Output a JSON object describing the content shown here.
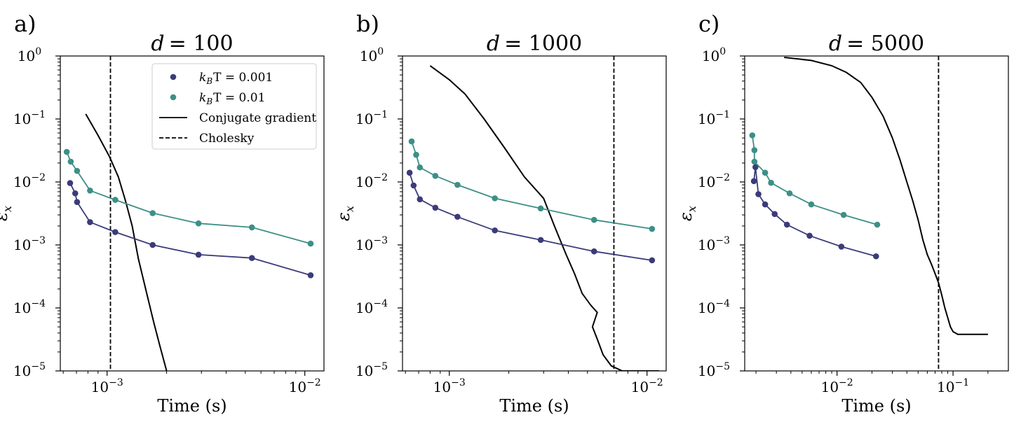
{
  "figure": {
    "colors": {
      "kT_0001": "#3b3b7a",
      "kT_001": "#3d8f87",
      "reference": "#000000"
    }
  },
  "chart_data": [
    {
      "type": "line",
      "panel_label": "a)",
      "title_var": "d",
      "title_value": "= 100",
      "xlabel": "Time (s)",
      "ylabel": "ε",
      "ylabel_sub": "x",
      "xscale": "log",
      "yscale": "log",
      "xlim": [
        0.00058,
        0.0125
      ],
      "ylim": [
        1e-05,
        1
      ],
      "x_ticks": [
        {
          "value": 0.001,
          "base": "10",
          "exp": "−3"
        },
        {
          "value": 0.01,
          "base": "10",
          "exp": "−2"
        }
      ],
      "y_ticks": [
        {
          "value": 1,
          "base": "10",
          "exp": "0"
        },
        {
          "value": 0.1,
          "base": "10",
          "exp": "−1"
        },
        {
          "value": 0.01,
          "base": "10",
          "exp": "−2"
        },
        {
          "value": 0.001,
          "base": "10",
          "exp": "−3"
        },
        {
          "value": 0.0001,
          "base": "10",
          "exp": "−4"
        },
        {
          "value": 1e-05,
          "base": "10",
          "exp": "−5"
        }
      ],
      "legend": {
        "position": "top-right",
        "entries": [
          {
            "key": "kT_0001",
            "style": "marker",
            "label_sym": "k",
            "label_sub": "B",
            "label_rest": "T = 0.001"
          },
          {
            "key": "kT_001",
            "style": "marker",
            "label_sym": "k",
            "label_sub": "B",
            "label_rest": "T = 0.01"
          },
          {
            "key": "cg",
            "style": "solid",
            "label": "Conjugate gradient"
          },
          {
            "key": "chol",
            "style": "dashed",
            "label": "Cholesky"
          }
        ]
      },
      "series": [
        {
          "key": "kT_0001",
          "name": "kBT = 0.001",
          "color": "#3b3b7a",
          "x": [
            0.00065,
            0.00069,
            0.000705,
            0.00082,
            0.0011,
            0.0017,
            0.0029,
            0.0054,
            0.0107
          ],
          "y": [
            0.0096,
            0.0066,
            0.0048,
            0.0023,
            0.0016,
            0.001,
            0.0007,
            0.00062,
            0.00033
          ]
        },
        {
          "key": "kT_001",
          "name": "kBT = 0.01",
          "color": "#3d8f87",
          "x": [
            0.000625,
            0.000655,
            0.000705,
            0.00082,
            0.0011,
            0.0017,
            0.0029,
            0.0054,
            0.0107
          ],
          "y": [
            0.03,
            0.021,
            0.015,
            0.0073,
            0.0052,
            0.0032,
            0.0022,
            0.0019,
            0.00105
          ]
        }
      ],
      "conjugate_gradient": {
        "x": [
          0.00078,
          0.0009,
          0.00103,
          0.00114,
          0.00124,
          0.00134,
          0.00144,
          0.00158,
          0.00172,
          0.00185,
          0.002
        ],
        "y": [
          0.12,
          0.055,
          0.025,
          0.012,
          0.005,
          0.002,
          0.0006,
          0.00018,
          6e-05,
          2.5e-05,
          1e-05
        ]
      },
      "cholesky_time": 0.00104
    },
    {
      "type": "line",
      "panel_label": "b)",
      "title_var": "d",
      "title_value": "= 1000",
      "xlabel": "Time (s)",
      "ylabel": "ε",
      "ylabel_sub": "x",
      "xscale": "log",
      "yscale": "log",
      "xlim": [
        0.00058,
        0.0125
      ],
      "ylim": [
        1e-05,
        1
      ],
      "x_ticks": [
        {
          "value": 0.001,
          "base": "10",
          "exp": "−3"
        },
        {
          "value": 0.01,
          "base": "10",
          "exp": "−2"
        }
      ],
      "y_ticks": [
        {
          "value": 1,
          "base": "10",
          "exp": "0"
        },
        {
          "value": 0.1,
          "base": "10",
          "exp": "−1"
        },
        {
          "value": 0.01,
          "base": "10",
          "exp": "−2"
        },
        {
          "value": 0.001,
          "base": "10",
          "exp": "−3"
        },
        {
          "value": 0.0001,
          "base": "10",
          "exp": "−4"
        },
        {
          "value": 1e-05,
          "base": "10",
          "exp": "−5"
        }
      ],
      "series": [
        {
          "key": "kT_0001",
          "name": "kBT = 0.001",
          "color": "#3b3b7a",
          "x": [
            0.00063,
            0.00066,
            0.00071,
            0.00085,
            0.0011,
            0.0017,
            0.0029,
            0.0054,
            0.0106
          ],
          "y": [
            0.014,
            0.0088,
            0.0053,
            0.0039,
            0.0028,
            0.0017,
            0.0012,
            0.00079,
            0.00057
          ]
        },
        {
          "key": "kT_001",
          "name": "kBT = 0.01",
          "color": "#3d8f87",
          "x": [
            0.000645,
            0.00068,
            0.00071,
            0.00085,
            0.0011,
            0.0017,
            0.0029,
            0.0054,
            0.0106
          ],
          "y": [
            0.044,
            0.027,
            0.017,
            0.0125,
            0.009,
            0.0055,
            0.0038,
            0.0025,
            0.0018
          ]
        },
        {
          "key": "cg",
          "name": "Conjugate gradient",
          "color": "#000000",
          "x": [
            0.0008,
            0.001,
            0.0012,
            0.0015,
            0.0019,
            0.0024,
            0.003,
            0.0034,
            0.0039,
            0.0043,
            0.0047,
            0.0052,
            0.0056,
            0.0053,
            0.0056,
            0.006,
            0.0066,
            0.0075,
            0.0085,
            0.0105,
            0.0115
          ],
          "y": [
            0.7,
            0.42,
            0.25,
            0.1,
            0.035,
            0.012,
            0.0055,
            0.002,
            0.0007,
            0.00035,
            0.00017,
            0.00011,
            8.5e-05,
            5e-05,
            3.2e-05,
            1.8e-05,
            1.2e-05,
            1e-05,
            1e-05,
            1e-05,
            1e-05
          ]
        }
      ],
      "cholesky_time": 0.0068
    },
    {
      "type": "line",
      "panel_label": "c)",
      "title_var": "d",
      "title_value": "= 5000",
      "xlabel": "Time (s)",
      "ylabel": "ε",
      "ylabel_sub": "x",
      "xscale": "log",
      "yscale": "log",
      "xlim": [
        0.0016,
        0.3
      ],
      "ylim": [
        1e-05,
        1
      ],
      "x_ticks": [
        {
          "value": 0.01,
          "base": "10",
          "exp": "−2"
        },
        {
          "value": 0.1,
          "base": "10",
          "exp": "−1"
        }
      ],
      "y_ticks": [
        {
          "value": 1,
          "base": "10",
          "exp": "0"
        },
        {
          "value": 0.1,
          "base": "10",
          "exp": "−1"
        },
        {
          "value": 0.01,
          "base": "10",
          "exp": "−2"
        },
        {
          "value": 0.001,
          "base": "10",
          "exp": "−3"
        },
        {
          "value": 0.0001,
          "base": "10",
          "exp": "−4"
        },
        {
          "value": 1e-05,
          "base": "10",
          "exp": "−5"
        }
      ],
      "series": [
        {
          "key": "kT_0001",
          "name": "kBT = 0.001",
          "color": "#3b3b7a",
          "x": [
            0.00192,
            0.00198,
            0.0021,
            0.0024,
            0.0029,
            0.0037,
            0.0058,
            0.0109,
            0.0217
          ],
          "y": [
            0.0103,
            0.0172,
            0.0064,
            0.0044,
            0.0031,
            0.0021,
            0.0014,
            0.00094,
            0.00066
          ]
        },
        {
          "key": "kT_001",
          "name": "kBT = 0.01",
          "color": "#3d8f87",
          "x": [
            0.00186,
            0.00194,
            0.00194,
            0.0024,
            0.0027,
            0.0039,
            0.006,
            0.0114,
            0.0222
          ],
          "y": [
            0.055,
            0.032,
            0.021,
            0.014,
            0.0097,
            0.0066,
            0.0044,
            0.003,
            0.0021
          ]
        },
        {
          "key": "cg",
          "name": "Conjugate gradient",
          "color": "#000000",
          "x": [
            0.0035,
            0.006,
            0.009,
            0.012,
            0.016,
            0.02,
            0.025,
            0.03,
            0.035,
            0.04,
            0.045,
            0.05,
            0.055,
            0.06,
            0.065,
            0.07,
            0.075,
            0.08,
            0.085,
            0.09,
            0.095,
            0.1,
            0.11,
            0.13,
            0.16,
            0.2
          ],
          "y": [
            0.95,
            0.85,
            0.7,
            0.55,
            0.38,
            0.22,
            0.11,
            0.05,
            0.022,
            0.01,
            0.005,
            0.0025,
            0.0012,
            0.0007,
            0.0005,
            0.00035,
            0.00025,
            0.00016,
            0.0001,
            7e-05,
            5e-05,
            4.2e-05,
            3.8e-05,
            3.8e-05,
            3.8e-05,
            3.8e-05
          ]
        }
      ],
      "cholesky_time": 0.075
    }
  ]
}
